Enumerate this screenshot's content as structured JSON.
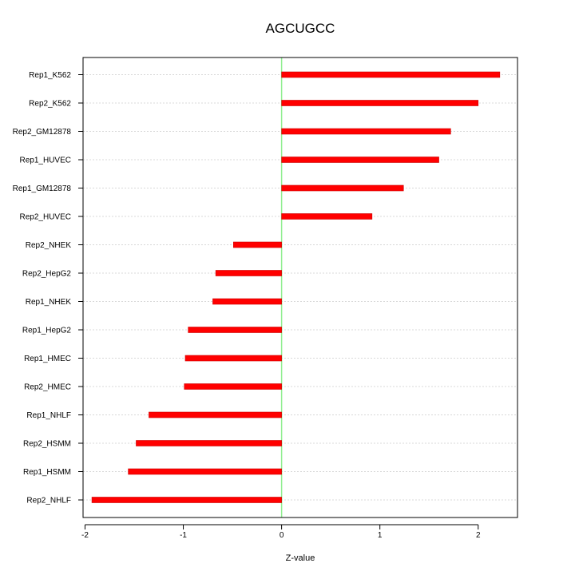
{
  "chart_data": {
    "type": "bar",
    "orientation": "horizontal",
    "title": "AGCUGCC",
    "xlabel": "Z-value",
    "ylabel": "",
    "xlim": [
      -2.02,
      2.4
    ],
    "x_ticks": [
      -2,
      -1,
      0,
      1,
      2
    ],
    "grid": true,
    "colors": {
      "bar": "#ff0000",
      "bar_border": "#cc0000",
      "zero_line": "#90ee90",
      "grid": "#cccccc"
    },
    "categories": [
      "Rep1_K562",
      "Rep2_K562",
      "Rep2_GM12878",
      "Rep1_HUVEC",
      "Rep1_GM12878",
      "Rep2_HUVEC",
      "Rep2_NHEK",
      "Rep2_HepG2",
      "Rep1_NHEK",
      "Rep1_HepG2",
      "Rep1_HMEC",
      "Rep2_HMEC",
      "Rep1_NHLF",
      "Rep2_HSMM",
      "Rep1_HSMM",
      "Rep2_NHLF"
    ],
    "values": [
      2.22,
      2.0,
      1.72,
      1.6,
      1.24,
      0.92,
      -0.49,
      -0.67,
      -0.7,
      -0.95,
      -0.98,
      -0.99,
      -1.35,
      -1.48,
      -1.56,
      -1.93
    ]
  }
}
